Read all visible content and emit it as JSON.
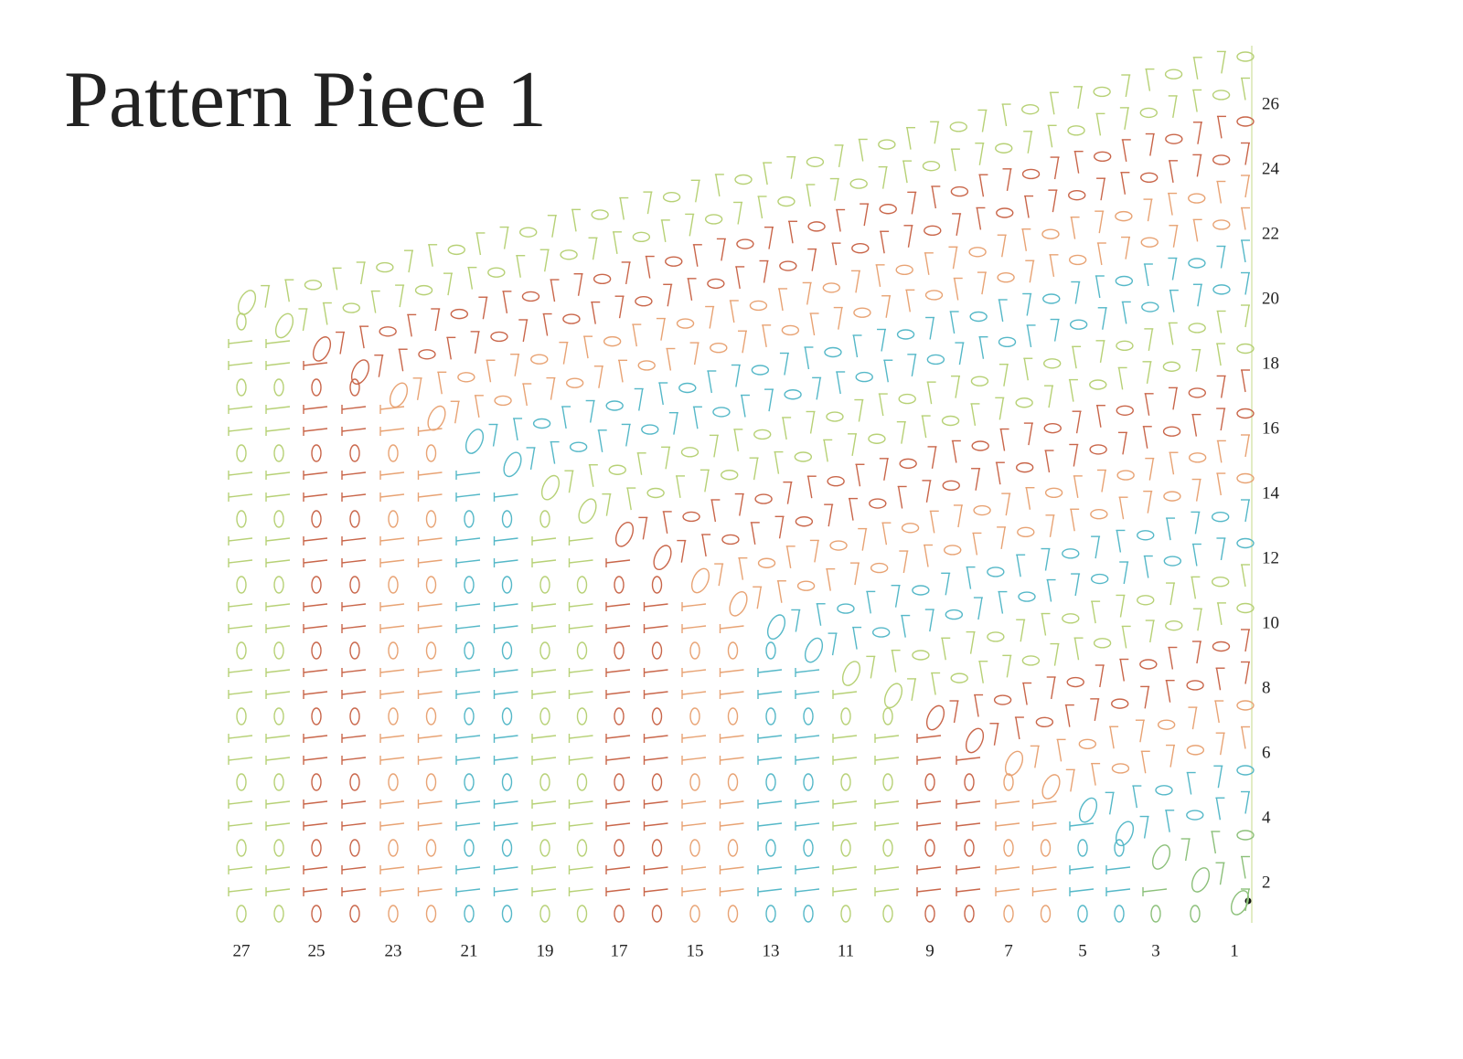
{
  "title": "Pattern Piece 1",
  "row_labels": [
    26,
    24,
    22,
    20,
    18,
    16,
    14,
    12,
    10,
    8,
    6,
    4,
    2
  ],
  "column_labels": [
    27,
    25,
    23,
    21,
    19,
    17,
    15,
    13,
    11,
    9,
    7,
    5,
    3,
    1
  ]
}
